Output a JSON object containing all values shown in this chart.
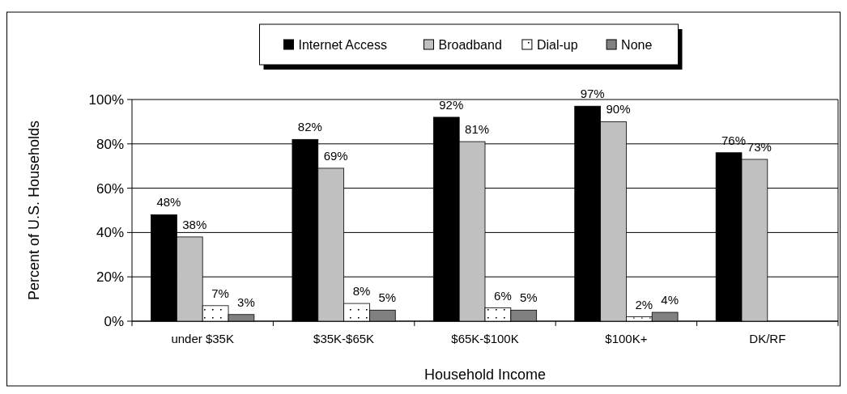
{
  "chart_data": {
    "type": "bar",
    "xlabel": "Household Income",
    "ylabel": "Percent of U.S. Households",
    "categories": [
      "under $35K",
      "$35K-$65K",
      "$65K-$100K",
      "$100K+",
      "DK/RF"
    ],
    "series": [
      {
        "name": "Internet Access",
        "color": "#000000",
        "values": [
          48,
          82,
          92,
          97,
          76
        ],
        "value_labels": [
          "48%",
          "82%",
          "92%",
          "97%",
          "76%"
        ]
      },
      {
        "name": "Broadband",
        "color": "#c0c0c0",
        "values": [
          38,
          69,
          81,
          90,
          73
        ],
        "value_labels": [
          "38%",
          "69%",
          "81%",
          "90%",
          "73%"
        ]
      },
      {
        "name": "Dial-up",
        "color": "#ffffff",
        "values": [
          7,
          8,
          6,
          2,
          null
        ],
        "value_labels": [
          "7%",
          "8%",
          "6%",
          "2%",
          null
        ]
      },
      {
        "name": "None",
        "color": "#808080",
        "values": [
          3,
          5,
          5,
          4,
          null
        ],
        "value_labels": [
          "3%",
          "5%",
          "5%",
          "4%",
          null
        ]
      }
    ],
    "ylim": [
      0,
      100
    ],
    "yticks": [
      {
        "value": 0,
        "label": "0%"
      },
      {
        "value": 20,
        "label": "20%"
      },
      {
        "value": 40,
        "label": "40%"
      },
      {
        "value": 60,
        "label": "60%"
      },
      {
        "value": 80,
        "label": "80%"
      },
      {
        "value": 100,
        "label": "100%"
      }
    ],
    "grid": "y",
    "legend": "top"
  }
}
